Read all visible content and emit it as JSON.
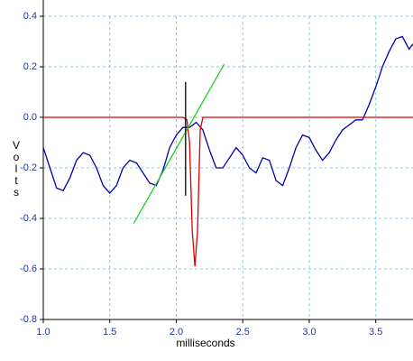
{
  "chart_data": {
    "type": "line",
    "x_label": "milliseconds",
    "y_label": "Volts",
    "xlim": [
      1.0,
      3.78
    ],
    "ylim": [
      -0.8,
      0.4
    ],
    "xticks": [
      {
        "value": 1.0,
        "label": "1.0"
      },
      1.5,
      {
        "value": 2.0,
        "label": "2.0"
      },
      2.5,
      {
        "value": 3.0,
        "label": "3.0"
      },
      3.5
    ],
    "yticks": [
      0.4,
      0.2,
      {
        "value": 0,
        "label": "0.0"
      },
      -0.2,
      -0.4,
      -0.6,
      -0.8
    ],
    "grid": true,
    "series": [
      {
        "color": "#0000b0",
        "x": [
          1.0,
          1.05,
          1.1,
          1.15,
          1.2,
          1.25,
          1.3,
          1.35,
          1.4,
          1.45,
          1.5,
          1.55,
          1.6,
          1.65,
          1.7,
          1.75,
          1.8,
          1.85,
          1.9,
          1.95,
          2.0,
          2.05,
          2.1,
          2.15,
          2.2,
          2.25,
          2.3,
          2.35,
          2.4,
          2.45,
          2.5,
          2.55,
          2.6,
          2.65,
          2.7,
          2.75,
          2.8,
          2.85,
          2.9,
          2.95,
          3.0,
          3.05,
          3.1,
          3.15,
          3.2,
          3.25,
          3.3,
          3.35,
          3.4,
          3.45,
          3.5,
          3.55,
          3.6,
          3.65,
          3.7,
          3.75,
          3.78
        ],
        "values": [
          -0.12,
          -0.2,
          -0.28,
          -0.29,
          -0.24,
          -0.17,
          -0.14,
          -0.15,
          -0.2,
          -0.27,
          -0.3,
          -0.27,
          -0.2,
          -0.17,
          -0.18,
          -0.22,
          -0.26,
          -0.27,
          -0.21,
          -0.12,
          -0.07,
          -0.04,
          -0.04,
          -0.02,
          -0.05,
          -0.13,
          -0.2,
          -0.2,
          -0.16,
          -0.12,
          -0.15,
          -0.2,
          -0.22,
          -0.16,
          -0.17,
          -0.25,
          -0.27,
          -0.2,
          -0.12,
          -0.07,
          -0.08,
          -0.13,
          -0.17,
          -0.14,
          -0.09,
          -0.05,
          -0.03,
          -0.01,
          -0.01,
          0.05,
          0.12,
          0.2,
          0.26,
          0.31,
          0.32,
          0.27,
          0.29
        ]
      },
      {
        "color": "#dd0000",
        "x": [
          1.0,
          2.05,
          2.08,
          2.1,
          2.12,
          2.14,
          2.16,
          2.18,
          2.2,
          3.78
        ],
        "values": [
          0,
          0,
          -0.01,
          -0.1,
          -0.45,
          -0.59,
          -0.45,
          -0.05,
          0,
          0
        ]
      },
      {
        "color": "#22cc22",
        "x": [
          1.68,
          2.36
        ],
        "values": [
          -0.42,
          0.21
        ]
      },
      {
        "color": "#000000",
        "x": [
          2.07,
          2.07
        ],
        "values": [
          0.14,
          -0.31
        ]
      }
    ]
  }
}
